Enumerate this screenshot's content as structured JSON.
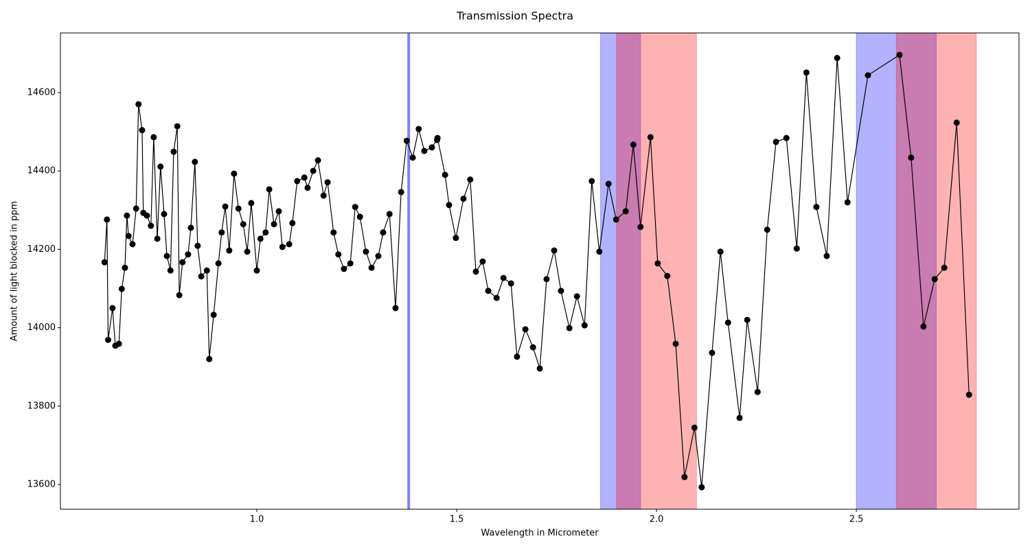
{
  "chart_data": {
    "type": "line",
    "title": "Transmission Spectra",
    "xlabel": "Wavelength in Micrometer",
    "ylabel": "Amount of light blocked in ppm",
    "color": "#000000",
    "x": [
      0.619,
      0.625,
      0.628,
      0.639,
      0.646,
      0.655,
      0.662,
      0.67,
      0.675,
      0.679,
      0.689,
      0.698,
      0.704,
      0.713,
      0.716,
      0.725,
      0.735,
      0.742,
      0.751,
      0.759,
      0.768,
      0.775,
      0.784,
      0.792,
      0.801,
      0.806,
      0.814,
      0.828,
      0.835,
      0.845,
      0.852,
      0.861,
      0.875,
      0.881,
      0.892,
      0.904,
      0.912,
      0.921,
      0.931,
      0.943,
      0.954,
      0.966,
      0.976,
      0.986,
      1.0,
      1.009,
      1.022,
      1.031,
      1.043,
      1.055,
      1.064,
      1.081,
      1.089,
      1.101,
      1.119,
      1.127,
      1.141,
      1.153,
      1.167,
      1.177,
      1.192,
      1.204,
      1.218,
      1.234,
      1.246,
      1.258,
      1.273,
      1.287,
      1.304,
      1.316,
      1.332,
      1.347,
      1.361,
      1.375,
      1.39,
      1.405,
      1.419,
      1.438,
      1.451,
      1.452,
      1.471,
      1.481,
      1.498,
      1.517,
      1.534,
      1.548,
      1.565,
      1.579,
      1.6,
      1.617,
      1.636,
      1.651,
      1.672,
      1.691,
      1.708,
      1.725,
      1.744,
      1.761,
      1.782,
      1.801,
      1.82,
      1.838,
      1.857,
      1.88,
      1.899,
      1.923,
      1.942,
      1.96,
      1.985,
      2.003,
      2.027,
      2.048,
      2.07,
      2.095,
      2.113,
      2.139,
      2.16,
      2.179,
      2.208,
      2.227,
      2.253,
      2.277,
      2.299,
      2.325,
      2.351,
      2.375,
      2.4,
      2.426,
      2.452,
      2.478,
      2.529,
      2.608,
      2.637,
      2.668,
      2.696,
      2.72,
      2.751,
      2.782
    ],
    "values": [
      14167,
      14276,
      13969,
      14050,
      13954,
      13959,
      14099,
      14153,
      14286,
      14234,
      14213,
      14304,
      14570,
      14504,
      14293,
      14286,
      14260,
      14486,
      14227,
      14411,
      14290,
      14183,
      14146,
      14449,
      14514,
      14083,
      14167,
      14187,
      14255,
      14423,
      14209,
      14131,
      14146,
      13920,
      14033,
      14164,
      14243,
      14309,
      14197,
      14393,
      14304,
      14264,
      14194,
      14318,
      14146,
      14227,
      14243,
      14353,
      14264,
      14297,
      14206,
      14213,
      14267,
      14374,
      14383,
      14357,
      14400,
      14427,
      14337,
      14371,
      14243,
      14187,
      14150,
      14164,
      14308,
      14283,
      14194,
      14153,
      14183,
      14243,
      14290,
      14050,
      14346,
      14477,
      14434,
      14507,
      14451,
      14460,
      14479,
      14484,
      14390,
      14313,
      14229,
      14329,
      14378,
      14143,
      14169,
      14094,
      14076,
      14127,
      14113,
      13926,
      13996,
      13950,
      13896,
      14124,
      14197,
      14094,
      13999,
      14080,
      14006,
      14374,
      14194,
      14367,
      14276,
      14297,
      14467,
      14257,
      14486,
      14164,
      14132,
      13959,
      13619,
      13745,
      13593,
      13936,
      14194,
      14013,
      13770,
      14020,
      13836,
      14250,
      14474,
      14484,
      14202,
      14651,
      14308,
      14183,
      14688,
      14320,
      14644,
      14696,
      14434,
      14003,
      14124,
      14153,
      14523,
      13829
    ],
    "xlim": [
      0.5086,
      2.907
    ],
    "ylim": [
      13537,
      14752
    ],
    "xticks": [
      {
        "value": 1.0,
        "label": "1.0"
      },
      {
        "value": 1.5,
        "label": "1.5"
      },
      {
        "value": 2.0,
        "label": "2.0"
      },
      {
        "value": 2.5,
        "label": "2.5"
      }
    ],
    "yticks": [
      13600,
      13800,
      14000,
      14200,
      14400,
      14600
    ],
    "spans": [
      {
        "xmin": 1.86,
        "xmax": 1.96,
        "color": "#0000ff"
      },
      {
        "xmin": 1.9,
        "xmax": 2.1,
        "color": "#ff0000"
      },
      {
        "xmin": 2.5,
        "xmax": 2.7,
        "color": "#0000ff"
      },
      {
        "xmin": 2.6,
        "xmax": 2.8,
        "color": "#ff0000"
      }
    ],
    "span_alpha": 0.3,
    "vlines": [
      {
        "x": 1.38,
        "color": "#0000ff"
      }
    ],
    "vline_alpha": 0.5
  }
}
